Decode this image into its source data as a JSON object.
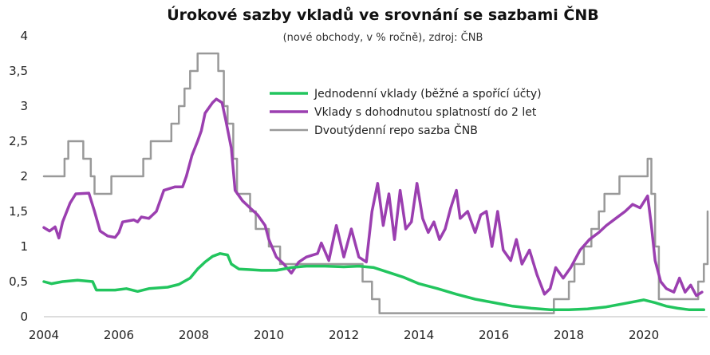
{
  "chart_data": {
    "type": "line",
    "title": "Úrokové sazby vkladů ve srovnání se sazbami ČNB",
    "subtitle": "(nové obchody, v % ročně), zdroj: ČNB",
    "xlabel": "",
    "ylabel": "",
    "xlim": [
      2004,
      2021.7
    ],
    "ylim": [
      0,
      4
    ],
    "x_ticks": [
      "2004",
      "2006",
      "2008",
      "2010",
      "2012",
      "2014",
      "2016",
      "2018",
      "2020"
    ],
    "y_ticks": [
      "0",
      "0,5",
      "1",
      "1,5",
      "2",
      "2,5",
      "3",
      "3,5",
      "4"
    ],
    "grid": false,
    "legend_position": "top-right",
    "series": [
      {
        "name": "Jednodenní vklady (běžné a spořící účty)",
        "color": "#22c55e",
        "step": false,
        "points": [
          [
            2004.0,
            0.5
          ],
          [
            2004.2,
            0.47
          ],
          [
            2004.5,
            0.5
          ],
          [
            2004.9,
            0.52
          ],
          [
            2005.3,
            0.5
          ],
          [
            2005.4,
            0.38
          ],
          [
            2005.9,
            0.38
          ],
          [
            2006.2,
            0.4
          ],
          [
            2006.5,
            0.36
          ],
          [
            2006.8,
            0.4
          ],
          [
            2007.3,
            0.42
          ],
          [
            2007.6,
            0.46
          ],
          [
            2007.9,
            0.55
          ],
          [
            2008.1,
            0.68
          ],
          [
            2008.3,
            0.78
          ],
          [
            2008.5,
            0.86
          ],
          [
            2008.7,
            0.9
          ],
          [
            2008.9,
            0.88
          ],
          [
            2009.0,
            0.75
          ],
          [
            2009.2,
            0.68
          ],
          [
            2009.5,
            0.67
          ],
          [
            2009.8,
            0.66
          ],
          [
            2010.2,
            0.66
          ],
          [
            2010.6,
            0.7
          ],
          [
            2011.0,
            0.72
          ],
          [
            2011.5,
            0.72
          ],
          [
            2012.0,
            0.71
          ],
          [
            2012.4,
            0.72
          ],
          [
            2012.8,
            0.7
          ],
          [
            2013.2,
            0.63
          ],
          [
            2013.6,
            0.56
          ],
          [
            2014.0,
            0.47
          ],
          [
            2014.5,
            0.4
          ],
          [
            2015.0,
            0.32
          ],
          [
            2015.5,
            0.25
          ],
          [
            2016.0,
            0.2
          ],
          [
            2016.5,
            0.15
          ],
          [
            2017.0,
            0.12
          ],
          [
            2017.5,
            0.1
          ],
          [
            2018.0,
            0.1
          ],
          [
            2018.5,
            0.11
          ],
          [
            2019.0,
            0.14
          ],
          [
            2019.5,
            0.19
          ],
          [
            2020.0,
            0.24
          ],
          [
            2020.3,
            0.2
          ],
          [
            2020.6,
            0.15
          ],
          [
            2020.9,
            0.12
          ],
          [
            2021.2,
            0.1
          ],
          [
            2021.6,
            0.1
          ]
        ]
      },
      {
        "name": "Vklady s dohodnutou splatností do 2 let",
        "color": "#9b3fb0",
        "step": false,
        "points": [
          [
            2004.0,
            1.27
          ],
          [
            2004.15,
            1.22
          ],
          [
            2004.3,
            1.28
          ],
          [
            2004.4,
            1.12
          ],
          [
            2004.5,
            1.35
          ],
          [
            2004.7,
            1.62
          ],
          [
            2004.85,
            1.75
          ],
          [
            2005.2,
            1.76
          ],
          [
            2005.35,
            1.5
          ],
          [
            2005.5,
            1.22
          ],
          [
            2005.7,
            1.15
          ],
          [
            2005.9,
            1.13
          ],
          [
            2006.0,
            1.2
          ],
          [
            2006.1,
            1.35
          ],
          [
            2006.4,
            1.38
          ],
          [
            2006.5,
            1.35
          ],
          [
            2006.6,
            1.42
          ],
          [
            2006.8,
            1.4
          ],
          [
            2007.0,
            1.5
          ],
          [
            2007.2,
            1.8
          ],
          [
            2007.5,
            1.85
          ],
          [
            2007.7,
            1.85
          ],
          [
            2007.8,
            2.0
          ],
          [
            2007.95,
            2.3
          ],
          [
            2008.1,
            2.5
          ],
          [
            2008.2,
            2.65
          ],
          [
            2008.3,
            2.9
          ],
          [
            2008.5,
            3.05
          ],
          [
            2008.6,
            3.1
          ],
          [
            2008.75,
            3.05
          ],
          [
            2008.85,
            2.8
          ],
          [
            2009.0,
            2.4
          ],
          [
            2009.1,
            1.8
          ],
          [
            2009.3,
            1.65
          ],
          [
            2009.5,
            1.55
          ],
          [
            2009.7,
            1.45
          ],
          [
            2009.9,
            1.3
          ],
          [
            2010.0,
            1.1
          ],
          [
            2010.2,
            0.85
          ],
          [
            2010.4,
            0.75
          ],
          [
            2010.6,
            0.62
          ],
          [
            2010.8,
            0.78
          ],
          [
            2011.0,
            0.85
          ],
          [
            2011.3,
            0.9
          ],
          [
            2011.4,
            1.05
          ],
          [
            2011.6,
            0.8
          ],
          [
            2011.8,
            1.3
          ],
          [
            2012.0,
            0.85
          ],
          [
            2012.2,
            1.25
          ],
          [
            2012.4,
            0.85
          ],
          [
            2012.6,
            0.78
          ],
          [
            2012.75,
            1.5
          ],
          [
            2012.9,
            1.9
          ],
          [
            2013.05,
            1.3
          ],
          [
            2013.2,
            1.75
          ],
          [
            2013.35,
            1.1
          ],
          [
            2013.5,
            1.8
          ],
          [
            2013.65,
            1.25
          ],
          [
            2013.8,
            1.35
          ],
          [
            2013.95,
            1.9
          ],
          [
            2014.1,
            1.4
          ],
          [
            2014.25,
            1.2
          ],
          [
            2014.4,
            1.35
          ],
          [
            2014.55,
            1.1
          ],
          [
            2014.7,
            1.25
          ],
          [
            2014.85,
            1.55
          ],
          [
            2015.0,
            1.8
          ],
          [
            2015.1,
            1.4
          ],
          [
            2015.3,
            1.5
          ],
          [
            2015.5,
            1.2
          ],
          [
            2015.65,
            1.45
          ],
          [
            2015.8,
            1.5
          ],
          [
            2015.95,
            1.0
          ],
          [
            2016.1,
            1.5
          ],
          [
            2016.25,
            0.95
          ],
          [
            2016.45,
            0.8
          ],
          [
            2016.6,
            1.1
          ],
          [
            2016.75,
            0.75
          ],
          [
            2016.95,
            0.95
          ],
          [
            2017.15,
            0.6
          ],
          [
            2017.35,
            0.32
          ],
          [
            2017.5,
            0.4
          ],
          [
            2017.65,
            0.7
          ],
          [
            2017.85,
            0.55
          ],
          [
            2018.05,
            0.7
          ],
          [
            2018.3,
            0.95
          ],
          [
            2018.55,
            1.1
          ],
          [
            2018.8,
            1.2
          ],
          [
            2019.0,
            1.3
          ],
          [
            2019.25,
            1.4
          ],
          [
            2019.5,
            1.5
          ],
          [
            2019.7,
            1.6
          ],
          [
            2019.9,
            1.55
          ],
          [
            2020.1,
            1.72
          ],
          [
            2020.2,
            1.3
          ],
          [
            2020.3,
            0.8
          ],
          [
            2020.45,
            0.5
          ],
          [
            2020.6,
            0.4
          ],
          [
            2020.8,
            0.35
          ],
          [
            2020.95,
            0.55
          ],
          [
            2021.1,
            0.35
          ],
          [
            2021.25,
            0.45
          ],
          [
            2021.4,
            0.3
          ],
          [
            2021.55,
            0.35
          ]
        ]
      },
      {
        "name": "Dvoutýdenní repo sazba ČNB",
        "color": "#999999",
        "step": true,
        "points": [
          [
            2004.0,
            2.0
          ],
          [
            2004.55,
            2.25
          ],
          [
            2004.65,
            2.5
          ],
          [
            2005.05,
            2.25
          ],
          [
            2005.25,
            2.0
          ],
          [
            2005.35,
            1.75
          ],
          [
            2005.8,
            2.0
          ],
          [
            2006.65,
            2.25
          ],
          [
            2006.85,
            2.5
          ],
          [
            2007.4,
            2.75
          ],
          [
            2007.6,
            3.0
          ],
          [
            2007.75,
            3.25
          ],
          [
            2007.9,
            3.5
          ],
          [
            2008.1,
            3.75
          ],
          [
            2008.65,
            3.5
          ],
          [
            2008.8,
            3.0
          ],
          [
            2008.9,
            2.75
          ],
          [
            2009.05,
            2.25
          ],
          [
            2009.15,
            1.75
          ],
          [
            2009.5,
            1.5
          ],
          [
            2009.65,
            1.25
          ],
          [
            2010.0,
            1.0
          ],
          [
            2010.3,
            0.75
          ],
          [
            2012.5,
            0.5
          ],
          [
            2012.75,
            0.25
          ],
          [
            2012.95,
            0.05
          ],
          [
            2017.6,
            0.25
          ],
          [
            2018.0,
            0.5
          ],
          [
            2018.15,
            0.75
          ],
          [
            2018.4,
            1.0
          ],
          [
            2018.6,
            1.25
          ],
          [
            2018.8,
            1.5
          ],
          [
            2018.95,
            1.75
          ],
          [
            2019.35,
            2.0
          ],
          [
            2020.1,
            2.25
          ],
          [
            2020.2,
            1.75
          ],
          [
            2020.3,
            1.0
          ],
          [
            2020.4,
            0.25
          ],
          [
            2021.45,
            0.5
          ],
          [
            2021.6,
            0.75
          ],
          [
            2021.7,
            1.5
          ]
        ]
      }
    ]
  }
}
